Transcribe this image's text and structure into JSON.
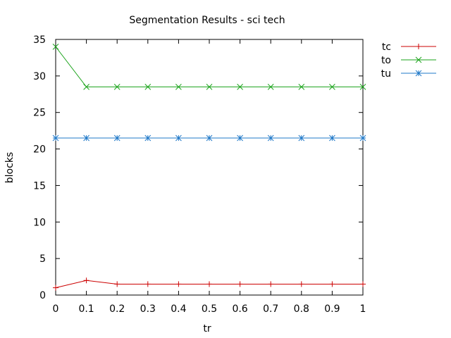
{
  "chart_data": {
    "type": "line",
    "title": "Segmentation Results - sci tech",
    "xlabel": "tr",
    "ylabel": "blocks",
    "x": [
      0,
      0.1,
      0.2,
      0.3,
      0.4,
      0.5,
      0.6,
      0.7,
      0.8,
      0.9,
      1
    ],
    "x_tick_labels": [
      "0",
      "0.1",
      "0.2",
      "0.3",
      "0.4",
      "0.5",
      "0.6",
      "0.7",
      "0.8",
      "0.9",
      "1"
    ],
    "y_tick_labels": [
      "0",
      "5",
      "10",
      "15",
      "20",
      "25",
      "30",
      "35"
    ],
    "xlim": [
      0,
      1
    ],
    "ylim": [
      0,
      35
    ],
    "grid": false,
    "legend_position": "outside-top-right",
    "series": [
      {
        "name": "tc",
        "color": "#cc0000",
        "marker": "plus",
        "values": [
          1.0,
          2.0,
          1.5,
          1.5,
          1.5,
          1.5,
          1.5,
          1.5,
          1.5,
          1.5,
          1.5
        ]
      },
      {
        "name": "to",
        "color": "#1aa31a",
        "marker": "cross",
        "values": [
          34.0,
          28.5,
          28.5,
          28.5,
          28.5,
          28.5,
          28.5,
          28.5,
          28.5,
          28.5,
          28.5
        ]
      },
      {
        "name": "tu",
        "color": "#1f78c8",
        "marker": "star",
        "values": [
          21.5,
          21.5,
          21.5,
          21.5,
          21.5,
          21.5,
          21.5,
          21.5,
          21.5,
          21.5,
          21.5
        ]
      }
    ]
  }
}
